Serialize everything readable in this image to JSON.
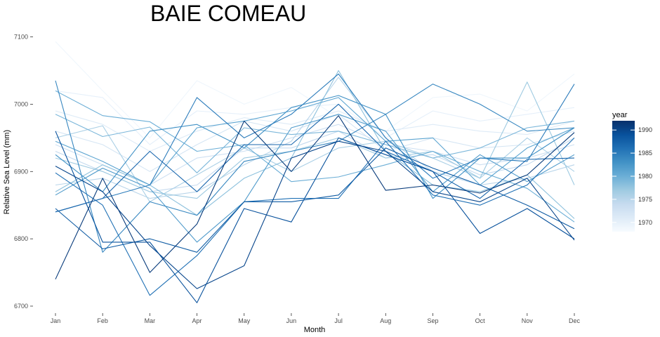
{
  "chart_data": {
    "type": "line",
    "title": "BAIE COMEAU",
    "xlabel": "Month",
    "ylabel": "Relative Sea Level (mm)",
    "categories": [
      "Jan",
      "Feb",
      "Mar",
      "Apr",
      "May",
      "Jun",
      "Jul",
      "Aug",
      "Sep",
      "Oct",
      "Nov",
      "Dec"
    ],
    "ylim": [
      6690,
      7115
    ],
    "yticks": [
      6700,
      6800,
      6900,
      7000,
      7100
    ],
    "grid": false,
    "legend": {
      "title": "year",
      "placement": "right",
      "type": "colorbar",
      "range": [
        1968,
        1992
      ],
      "ticks": [
        1970,
        1975,
        1980,
        1985,
        1990
      ],
      "color_low": "#f7fbff",
      "color_high": "#08306b"
    },
    "series": [
      {
        "year": 1969,
        "values": [
          7093,
          7020,
          6950,
          7035,
          7000,
          7025,
          6980,
          6960,
          7010,
          7015,
          6990,
          7045
        ]
      },
      {
        "year": 1970,
        "values": [
          7020,
          7010,
          6940,
          6990,
          6985,
          6995,
          7000,
          6950,
          6990,
          6975,
          6985,
          6995
        ]
      },
      {
        "year": 1971,
        "values": [
          6990,
          6970,
          6930,
          6960,
          6980,
          6970,
          6990,
          6960,
          6970,
          6960,
          6955,
          6975
        ]
      },
      {
        "year": 1972,
        "values": [
          6960,
          6940,
          6900,
          6940,
          6975,
          6960,
          6985,
          6930,
          6950,
          6935,
          6940,
          6960
        ]
      },
      {
        "year": 1973,
        "values": [
          6940,
          6910,
          6880,
          6920,
          6930,
          6950,
          6970,
          6940,
          6930,
          6910,
          6920,
          6940
        ]
      },
      {
        "year": 1974,
        "values": [
          6930,
          6900,
          6870,
          6880,
          6935,
          6935,
          6960,
          6920,
          6925,
          6895,
          6910,
          6950
        ]
      },
      {
        "year": 1975,
        "values": [
          6880,
          6890,
          6860,
          6870,
          6910,
          6945,
          7040,
          6950,
          6900,
          6880,
          6890,
          6910
        ]
      },
      {
        "year": 1976,
        "values": [
          6950,
          6968,
          6855,
          6895,
          6935,
          6900,
          6935,
          6945,
          6920,
          6890,
          6950,
          6900
        ]
      },
      {
        "year": 1977,
        "values": [
          6920,
          6900,
          6870,
          6860,
          6920,
          6930,
          6950,
          6920,
          6930,
          6890,
          7033,
          6880
        ]
      },
      {
        "year": 1978,
        "values": [
          6870,
          6910,
          6880,
          6835,
          6890,
          6920,
          7050,
          6930,
          6880,
          6870,
          6895,
          6830
        ]
      },
      {
        "year": 1979,
        "values": [
          6985,
          6952,
          6966,
          6898,
          6965,
          6955,
          6960,
          6940,
          6920,
          6935,
          6965,
          6975
        ]
      },
      {
        "year": 1980,
        "values": [
          7020,
          6983,
          6974,
          6930,
          6940,
          6885,
          6892,
          6910,
          6930,
          6900,
          6875,
          6825
        ]
      },
      {
        "year": 1981,
        "values": [
          6945,
          6915,
          6880,
          6965,
          6975,
          6990,
          7010,
          6945,
          6950,
          6880,
          6935,
          6965
        ]
      },
      {
        "year": 1982,
        "values": [
          6865,
          6905,
          6875,
          6795,
          6855,
          6965,
          6985,
          6960,
          6870,
          6925,
          6885,
          6925
        ]
      },
      {
        "year": 1983,
        "values": [
          6925,
          6870,
          6960,
          6970,
          6935,
          6995,
          7013,
          6985,
          6860,
          6920,
          6920,
          6965
        ]
      },
      {
        "year": 1984,
        "values": [
          7035,
          6780,
          6855,
          6835,
          6915,
          6930,
          6945,
          6985,
          7030,
          7000,
          6960,
          6965
        ]
      },
      {
        "year": 1985,
        "values": [
          6840,
          6860,
          6880,
          7010,
          6950,
          6985,
          7045,
          6950,
          6890,
          6920,
          6915,
          7030
        ]
      },
      {
        "year": 1986,
        "values": [
          6898,
          6850,
          6716,
          6775,
          6855,
          6860,
          6860,
          6945,
          6865,
          6850,
          6880,
          6950
        ]
      },
      {
        "year": 1987,
        "values": [
          6840,
          6860,
          6930,
          6870,
          6940,
          6940,
          7000,
          6930,
          6900,
          6860,
          6918,
          6920
        ]
      },
      {
        "year": 1988,
        "values": [
          6845,
          6785,
          6800,
          6780,
          6855,
          6855,
          6865,
          6935,
          6905,
          6880,
          6850,
          6815
        ]
      },
      {
        "year": 1989,
        "values": [
          6960,
          6795,
          6795,
          6705,
          6845,
          6825,
          6950,
          6925,
          6900,
          6808,
          6845,
          6800
        ]
      },
      {
        "year": 1990,
        "values": [
          6908,
          6870,
          6790,
          6726,
          6760,
          6920,
          6945,
          6930,
          6870,
          6855,
          6890,
          6798
        ]
      },
      {
        "year": 1991,
        "values": [
          6740,
          6890,
          6750,
          6822,
          6975,
          6900,
          6983,
          6872,
          6880,
          6868,
          6895,
          6958
        ]
      }
    ]
  }
}
